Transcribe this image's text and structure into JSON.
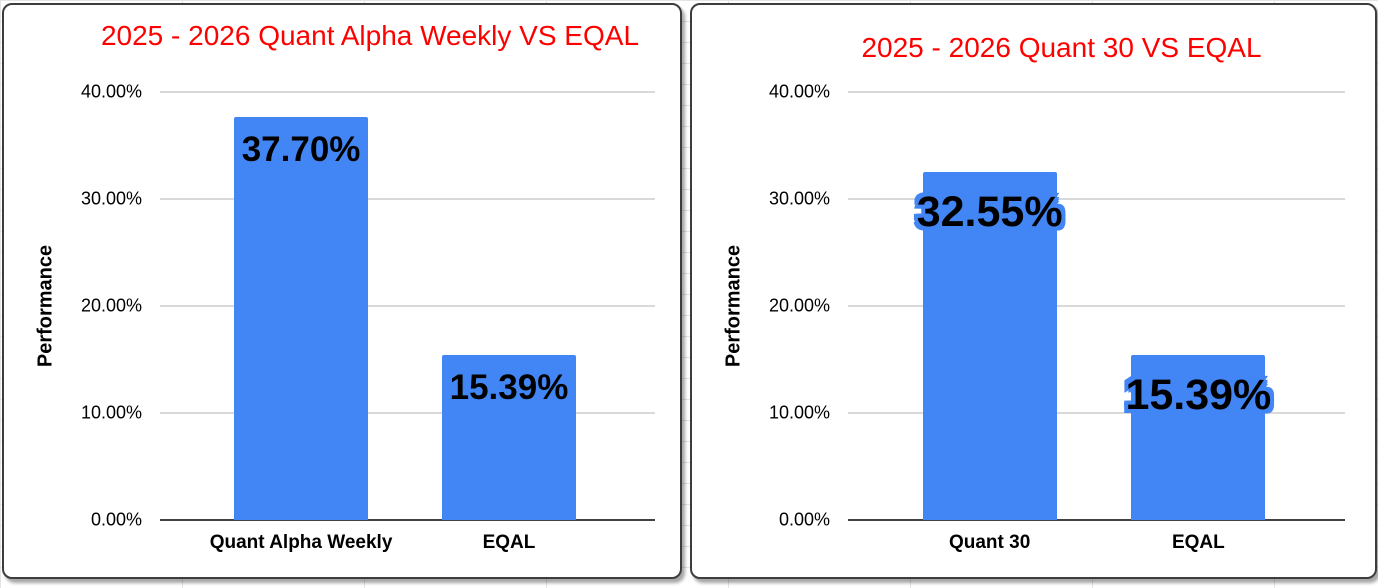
{
  "chart_data": [
    {
      "type": "bar",
      "title": "2025 - 2026 Quant Alpha Weekly VS EQAL",
      "title_color": "#ff0000",
      "categories": [
        "Quant Alpha Weekly",
        "EQAL"
      ],
      "values": [
        37.7,
        15.39
      ],
      "value_labels": [
        "37.70%",
        "15.39%"
      ],
      "xlabel": "",
      "ylabel": "Performance",
      "ylim": [
        0,
        40
      ],
      "y_tick_labels": [
        "40.00%",
        "30.00%",
        "20.00%",
        "10.00%",
        "0.00%"
      ],
      "grid": true,
      "legend": "none",
      "bar_color": "#4285f4",
      "label_color": "#000000"
    },
    {
      "type": "bar",
      "title": "2025 - 2026 Quant 30 VS EQAL",
      "title_color": "#ff0000",
      "categories": [
        "Quant 30",
        "EQAL"
      ],
      "values": [
        32.55,
        15.39
      ],
      "value_labels": [
        "32.55%",
        "15.39%"
      ],
      "xlabel": "",
      "ylabel": "Performance",
      "ylim": [
        0,
        40
      ],
      "y_tick_labels": [
        "40.00%",
        "30.00%",
        "20.00%",
        "10.00%",
        "0.00%"
      ],
      "grid": true,
      "legend": "none",
      "bar_color": "#4285f4",
      "label_color": "#000000",
      "label_aura_color": "#4285f4"
    }
  ]
}
